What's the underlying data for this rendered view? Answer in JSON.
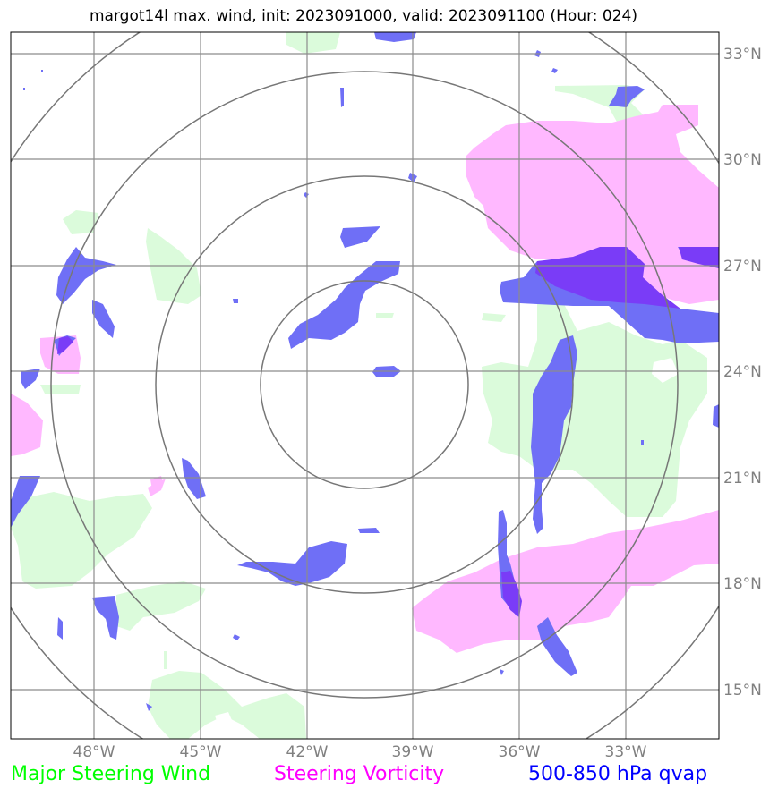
{
  "title": "margot14l max. wind, init: 2023091000, valid: 2023091100 (Hour: 024)",
  "legend": [
    {
      "label": "Major Steering Wind",
      "color": "#00ff00"
    },
    {
      "label": "Steering Vorticity",
      "color": "#ff00ff"
    },
    {
      "label": "500-850 hPa qvap",
      "color": "#0000ff"
    }
  ],
  "fill_colors": {
    "steering_wind": "#dbfbdb",
    "vorticity": "#ffb8ff",
    "qvap": "#6f6ff6",
    "qvap_dark": "#7a3cf7"
  },
  "map": {
    "lon_labels": [
      "48°W",
      "45°W",
      "42°W",
      "39°W",
      "36°W",
      "33°W"
    ],
    "lat_labels": [
      "33°N",
      "30°N",
      "27°N",
      "24°N",
      "21°N",
      "18°N",
      "15°N"
    ],
    "range_rings": 4
  }
}
